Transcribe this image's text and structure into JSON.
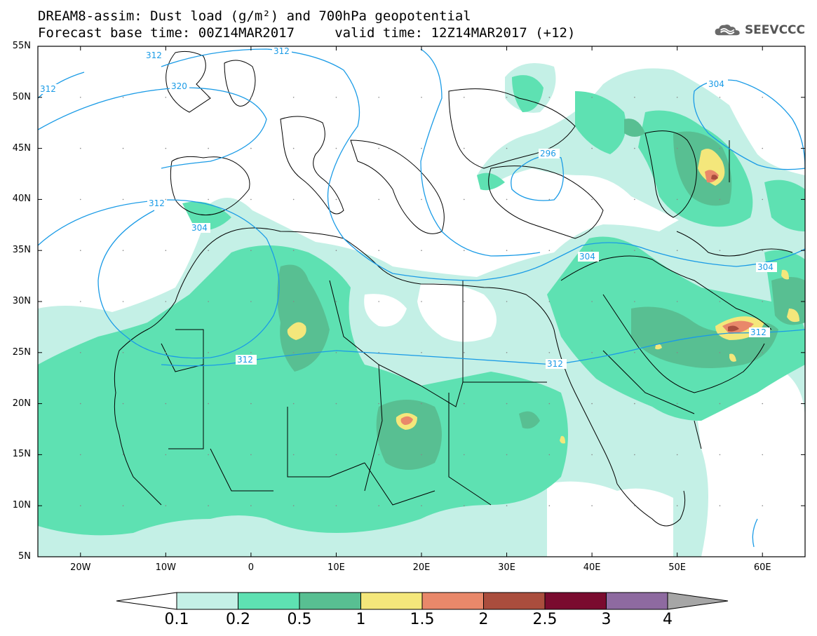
{
  "title": {
    "line1": "DREAM8-assim: Dust load (g/m²) and 700hPa geopotential",
    "line2": "Forecast base time: 00Z14MAR2017     valid time: 12Z14MAR2017 (+12)"
  },
  "logo": {
    "text": "SEEVCCC",
    "icon": "cloud-icon"
  },
  "map": {
    "lat_labels": [
      "55N",
      "50N",
      "45N",
      "40N",
      "35N",
      "30N",
      "25N",
      "20N",
      "15N",
      "10N",
      "5N"
    ],
    "lon_labels": [
      "20W",
      "10W",
      "0",
      "10E",
      "20E",
      "30E",
      "40E",
      "50E",
      "60E"
    ],
    "contour_labels": [
      "312",
      "312",
      "320",
      "312",
      "304",
      "312",
      "296",
      "304",
      "304",
      "312",
      "312",
      "304",
      "312"
    ],
    "dust_colors": [
      "#c4f0e6",
      "#5ee1b2",
      "#58bf92",
      "#f4e77b",
      "#e9886a",
      "#aa4d3d",
      "#7a0b2f",
      "#8e6aa0"
    ]
  },
  "colorbar": {
    "labels": [
      "0.1",
      "0.2",
      "0.5",
      "1",
      "1.5",
      "2",
      "2.5",
      "3",
      "4"
    ],
    "colors": [
      "#c4f0e6",
      "#5ee1b2",
      "#58bf92",
      "#f4e77b",
      "#e9886a",
      "#aa4d3d",
      "#7a0b2f",
      "#8e6aa0",
      "#a6a6a6"
    ]
  }
}
